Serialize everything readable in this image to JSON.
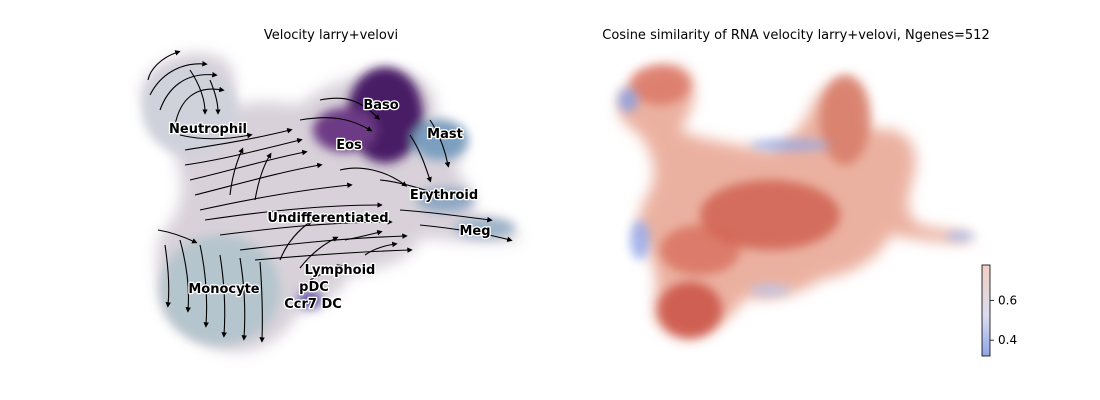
{
  "chart_data": [
    {
      "type": "scatter",
      "title": "Velocity larry+velovi",
      "xlabel": "",
      "ylabel": "",
      "grid": false,
      "clusters": [
        {
          "name": "Neutrophil",
          "color": "#c9cdd6"
        },
        {
          "name": "Baso",
          "color": "#4b1b66"
        },
        {
          "name": "Mast",
          "color": "#7aa0c0"
        },
        {
          "name": "Eos",
          "color": "#7b4a8a"
        },
        {
          "name": "Erythroid",
          "color": "#8fa9c6"
        },
        {
          "name": "Undifferentiated",
          "color": "#d8d0d8"
        },
        {
          "name": "Meg",
          "color": "#9db4c8"
        },
        {
          "name": "Lymphoid",
          "color": "#c8c6d6"
        },
        {
          "name": "pDC",
          "color": "#8d9fc4"
        },
        {
          "name": "Monocyte",
          "color": "#b9c8cf"
        },
        {
          "name": "Ccr7 DC",
          "color": "#6a5aa8"
        }
      ],
      "overlay": "velocity streamlines"
    },
    {
      "type": "scatter",
      "title": "Cosine similarity of RNA velocity larry+velovi, Ngenes=512",
      "xlabel": "",
      "ylabel": "",
      "grid": false,
      "colormap": "coolwarm",
      "colorbar": {
        "ticks": [
          "0.4",
          "0.6"
        ],
        "range": [
          0.32,
          0.78
        ]
      }
    }
  ]
}
